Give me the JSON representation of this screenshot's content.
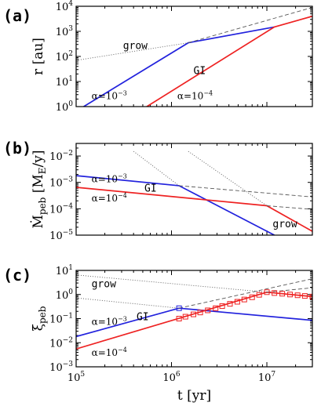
{
  "chart_data": [
    {
      "panel_label": "(a)",
      "type": "line",
      "xscale": "log",
      "yscale": "log",
      "xlim": [
        100000.0,
        30000000.0
      ],
      "ylim": [
        1,
        10000.0
      ],
      "ylabel": "r [au]",
      "yticks": [
        {
          "v": 1,
          "e": "0"
        },
        {
          "v": 10,
          "e": "1"
        },
        {
          "v": 100,
          "e": "2"
        },
        {
          "v": 1000,
          "e": "3"
        },
        {
          "v": 10000,
          "e": "4"
        }
      ],
      "series": [
        {
          "color": "#2222dd",
          "style": "solid",
          "points": [
            [
              120000.0,
              1
            ],
            [
              1500000.0,
              350
            ],
            [
              12000000.0,
              1500
            ]
          ]
        },
        {
          "color": "#ee2222",
          "style": "solid",
          "points": [
            [
              550000.0,
              1
            ],
            [
              12000000.0,
              1500
            ],
            [
              30000000.0,
              4000
            ]
          ]
        },
        {
          "color": "#555555",
          "style": "dashed",
          "points": [
            [
              1500000.0,
              350
            ],
            [
              30000000.0,
              9000
            ]
          ]
        },
        {
          "color": "#555555",
          "style": "dotted",
          "points": [
            [
              100000.0,
              70
            ],
            [
              1500000.0,
              350
            ]
          ]
        }
      ],
      "annotations": [
        {
          "text": "grow",
          "x": 310000.0,
          "y": 200,
          "font": "mono"
        },
        {
          "text": "GI",
          "x": 1700000.0,
          "y": 20,
          "font": "mono"
        },
        {
          "base": "α=10",
          "exp": "−3",
          "x": 145000.0,
          "y": 2.0,
          "font": "serif"
        },
        {
          "base": "α=10",
          "exp": "−4",
          "x": 1150000.0,
          "y": 2.0,
          "font": "serif"
        }
      ]
    },
    {
      "panel_label": "(b)",
      "type": "line",
      "xscale": "log",
      "yscale": "log",
      "xlim": [
        100000.0,
        30000000.0
      ],
      "ylim": [
        1e-05,
        0.03
      ],
      "ylabel": "Ṁ",
      "ylabel_sub": "peb",
      "ylabel_tail": " [M",
      "ylabel_sub2": "E",
      "ylabel_end": "/y]",
      "yticks": [
        {
          "v": 1e-05,
          "e": "−5"
        },
        {
          "v": 0.0001,
          "e": "−4"
        },
        {
          "v": 0.001,
          "e": "−3"
        },
        {
          "v": 0.01,
          "e": "−2"
        }
      ],
      "series": [
        {
          "color": "#2222dd",
          "style": "solid",
          "points": [
            [
              100000.0,
              0.0018
            ],
            [
              1200000.0,
              0.00075
            ],
            [
              12000000.0,
              1e-05
            ]
          ]
        },
        {
          "color": "#ee2222",
          "style": "solid",
          "points": [
            [
              100000.0,
              0.00065
            ],
            [
              10000000.0,
              0.00013
            ],
            [
              30000000.0,
              1.4e-05
            ]
          ]
        },
        {
          "color": "#555555",
          "style": "dashed",
          "points": [
            [
              1200000.0,
              0.00075
            ],
            [
              30000000.0,
              0.00028
            ]
          ]
        },
        {
          "color": "#555555",
          "style": "dashed",
          "points": [
            [
              10000000.0,
              0.00013
            ],
            [
              30000000.0,
              9.5e-05
            ]
          ]
        },
        {
          "color": "#555555",
          "style": "dotted",
          "points": [
            [
              400000.0,
              0.015
            ],
            [
              1200000.0,
              0.00075
            ]
          ]
        },
        {
          "color": "#555555",
          "style": "dotted",
          "points": [
            [
              1500000.0,
              0.015
            ],
            [
              10000000.0,
              0.00013
            ]
          ]
        }
      ],
      "annotations": [
        {
          "base": "α=10",
          "exp": "−3",
          "x": 145000.0,
          "y": 0.001,
          "font": "serif"
        },
        {
          "text": "GI",
          "x": 520000.0,
          "y": 0.00045,
          "font": "mono"
        },
        {
          "base": "α=10",
          "exp": "−4",
          "x": 145000.0,
          "y": 0.00019,
          "font": "serif"
        },
        {
          "text": "grow",
          "x": 11500000.0,
          "y": 2e-05,
          "font": "mono"
        }
      ]
    },
    {
      "panel_label": "(c)",
      "type": "line",
      "xscale": "log",
      "yscale": "log",
      "xlim": [
        100000.0,
        30000000.0
      ],
      "ylim": [
        0.001,
        10
      ],
      "xlabel": "t [yr]",
      "ylabel": "ξ",
      "ylabel_sub": "peb",
      "yticks": [
        {
          "v": 0.001,
          "e": "−3"
        },
        {
          "v": 0.01,
          "e": "−2"
        },
        {
          "v": 0.1,
          "e": "−1"
        },
        {
          "v": 1,
          "e": "0"
        },
        {
          "v": 10,
          "e": "1"
        }
      ],
      "xticks": [
        {
          "v": 100000.0,
          "e": "5"
        },
        {
          "v": 1000000.0,
          "e": "6"
        },
        {
          "v": 10000000.0,
          "e": "7"
        }
      ],
      "series": [
        {
          "color": "#2222dd",
          "style": "solid",
          "points": [
            [
              100000.0,
              0.018
            ],
            [
              1200000.0,
              0.27
            ],
            [
              30000000.0,
              0.085
            ]
          ]
        },
        {
          "color": "#ee2222",
          "style": "solid",
          "points": [
            [
              100000.0,
              0.0055
            ],
            [
              10000000.0,
              1.25
            ],
            [
              30000000.0,
              0.82
            ]
          ]
        },
        {
          "color": "#555555",
          "style": "dashed",
          "points": [
            [
              1200000.0,
              0.27
            ],
            [
              30000000.0,
              4.5
            ]
          ]
        },
        {
          "color": "#555555",
          "style": "dashed",
          "points": [
            [
              10000000.0,
              1.25
            ],
            [
              30000000.0,
              1.9
            ]
          ]
        },
        {
          "color": "#555555",
          "style": "dotted",
          "points": [
            [
              100000.0,
              6.5
            ],
            [
              10000000.0,
              1.25
            ]
          ]
        },
        {
          "color": "#555555",
          "style": "dotted",
          "points": [
            [
              100000.0,
              0.72
            ],
            [
              1200000.0,
              0.27
            ]
          ]
        }
      ],
      "markers": [
        {
          "color": "#2222dd",
          "shape": "square",
          "points": [
            [
              1200000.0,
              0.27
            ]
          ]
        },
        {
          "color": "#ee2222",
          "shape": "square",
          "points": [
            [
              1200000.0,
              0.1
            ],
            [
              1400000.0,
              0.12
            ],
            [
              1700000.0,
              0.15
            ],
            [
              2000000.0,
              0.18
            ],
            [
              2400000.0,
              0.22
            ],
            [
              2900000.0,
              0.27
            ],
            [
              3400000.0,
              0.33
            ],
            [
              4100000.0,
              0.41
            ],
            [
              4900000.0,
              0.5
            ],
            [
              5800000.0,
              0.62
            ],
            [
              7000000.0,
              0.77
            ],
            [
              8300000.0,
              0.97
            ],
            [
              10000000.0,
              1.25
            ],
            [
              12000000.0,
              1.15
            ],
            [
              14500000.0,
              1.08
            ],
            [
              17500000.0,
              1.0
            ],
            [
              21000000.0,
              0.93
            ],
            [
              25000000.0,
              0.87
            ],
            [
              30000000.0,
              0.82
            ]
          ]
        }
      ],
      "annotations": [
        {
          "text": "grow",
          "x": 145000.0,
          "y": 2.0,
          "font": "mono"
        },
        {
          "base": "α=10",
          "exp": "−3",
          "x": 145000.0,
          "y": 0.055,
          "font": "serif"
        },
        {
          "text": "GI",
          "x": 430000.0,
          "y": 0.085,
          "font": "mono"
        },
        {
          "base": "α=10",
          "exp": "−4",
          "x": 145000.0,
          "y": 0.0028,
          "font": "serif"
        }
      ]
    }
  ]
}
